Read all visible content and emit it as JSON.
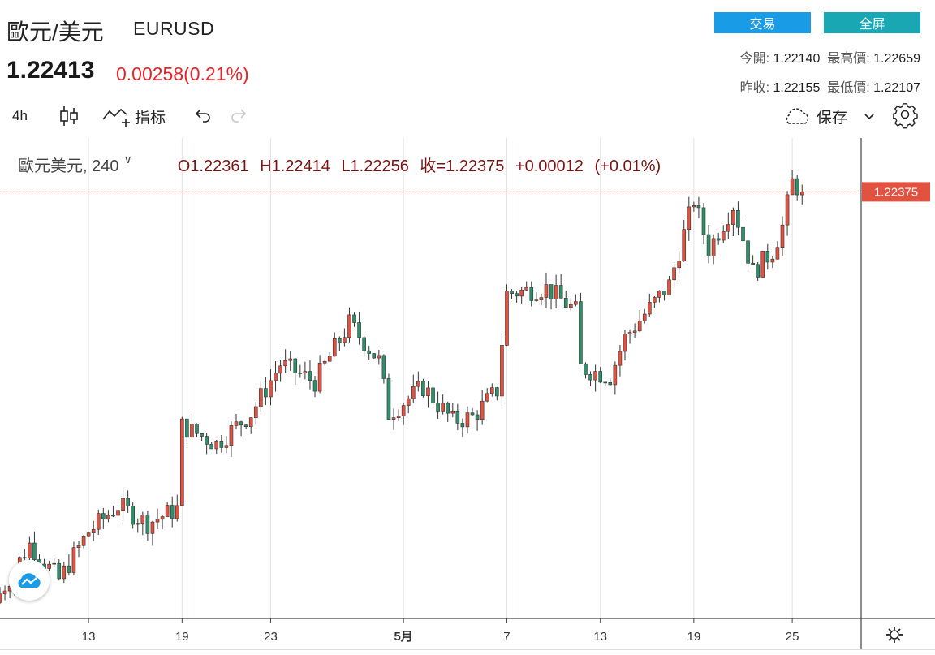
{
  "header": {
    "name": "歐元/美元",
    "symbol": "EURUSD",
    "price": "1.22413",
    "change": "0.00258(0.21%)",
    "trade_label": "交易",
    "fullscreen_label": "全屏",
    "open_label": "今開:",
    "open_value": "1.22140",
    "high_label": "最高價:",
    "high_value": "1.22659",
    "prev_close_label": "昨收:",
    "prev_close_value": "1.22155",
    "low_label": "最低價:",
    "low_value": "1.22107"
  },
  "toolbar": {
    "interval": "4h",
    "indicator_label": "指标",
    "save_label": "保存"
  },
  "legend": {
    "name": "歐元美元, 240",
    "values": "O1.22361 H1.22414 L1.22256 收=1.22375 +0.00012 (+0.01%)"
  },
  "colors": {
    "up": "#e15241",
    "down": "#2f8f6a",
    "price_tag": "#e15241"
  },
  "chart_data": {
    "type": "candlestick",
    "last_price": 1.22375,
    "last_price_label": "1.22375",
    "y_range": [
      1.1996,
      1.2268
    ],
    "x_range": [
      0,
      175
    ],
    "grid": true,
    "x_ticks": [
      {
        "label": "13",
        "x": 18
      },
      {
        "label": "19",
        "x": 37
      },
      {
        "label": "23",
        "x": 55
      },
      {
        "label": "5月",
        "x": 82
      },
      {
        "label": "7",
        "x": 103
      },
      {
        "label": "13",
        "x": 122
      },
      {
        "label": "19",
        "x": 141
      },
      {
        "label": "25",
        "x": 161
      }
    ],
    "anchors": [
      [
        0,
        1.201
      ],
      [
        6,
        1.2038
      ],
      [
        12,
        1.2018
      ],
      [
        18,
        1.2045
      ],
      [
        24,
        1.206
      ],
      [
        30,
        1.205
      ],
      [
        36,
        1.2058
      ],
      [
        37,
        1.2105
      ],
      [
        44,
        1.2095
      ],
      [
        51,
        1.2112
      ],
      [
        57,
        1.214
      ],
      [
        64,
        1.213
      ],
      [
        71,
        1.2163
      ],
      [
        77,
        1.2142
      ],
      [
        79,
        1.2112
      ],
      [
        86,
        1.2127
      ],
      [
        92,
        1.2108
      ],
      [
        96,
        1.211
      ],
      [
        101,
        1.2125
      ],
      [
        103,
        1.218
      ],
      [
        111,
        1.2183
      ],
      [
        117,
        1.217
      ],
      [
        118,
        1.2138
      ],
      [
        124,
        1.2133
      ],
      [
        127,
        1.2155
      ],
      [
        136,
        1.2185
      ],
      [
        141,
        1.2233
      ],
      [
        144,
        1.2205
      ],
      [
        149,
        1.223
      ],
      [
        153,
        1.2192
      ],
      [
        157,
        1.2204
      ],
      [
        159,
        1.2218
      ],
      [
        161,
        1.2243
      ],
      [
        163,
        1.22375
      ]
    ]
  }
}
